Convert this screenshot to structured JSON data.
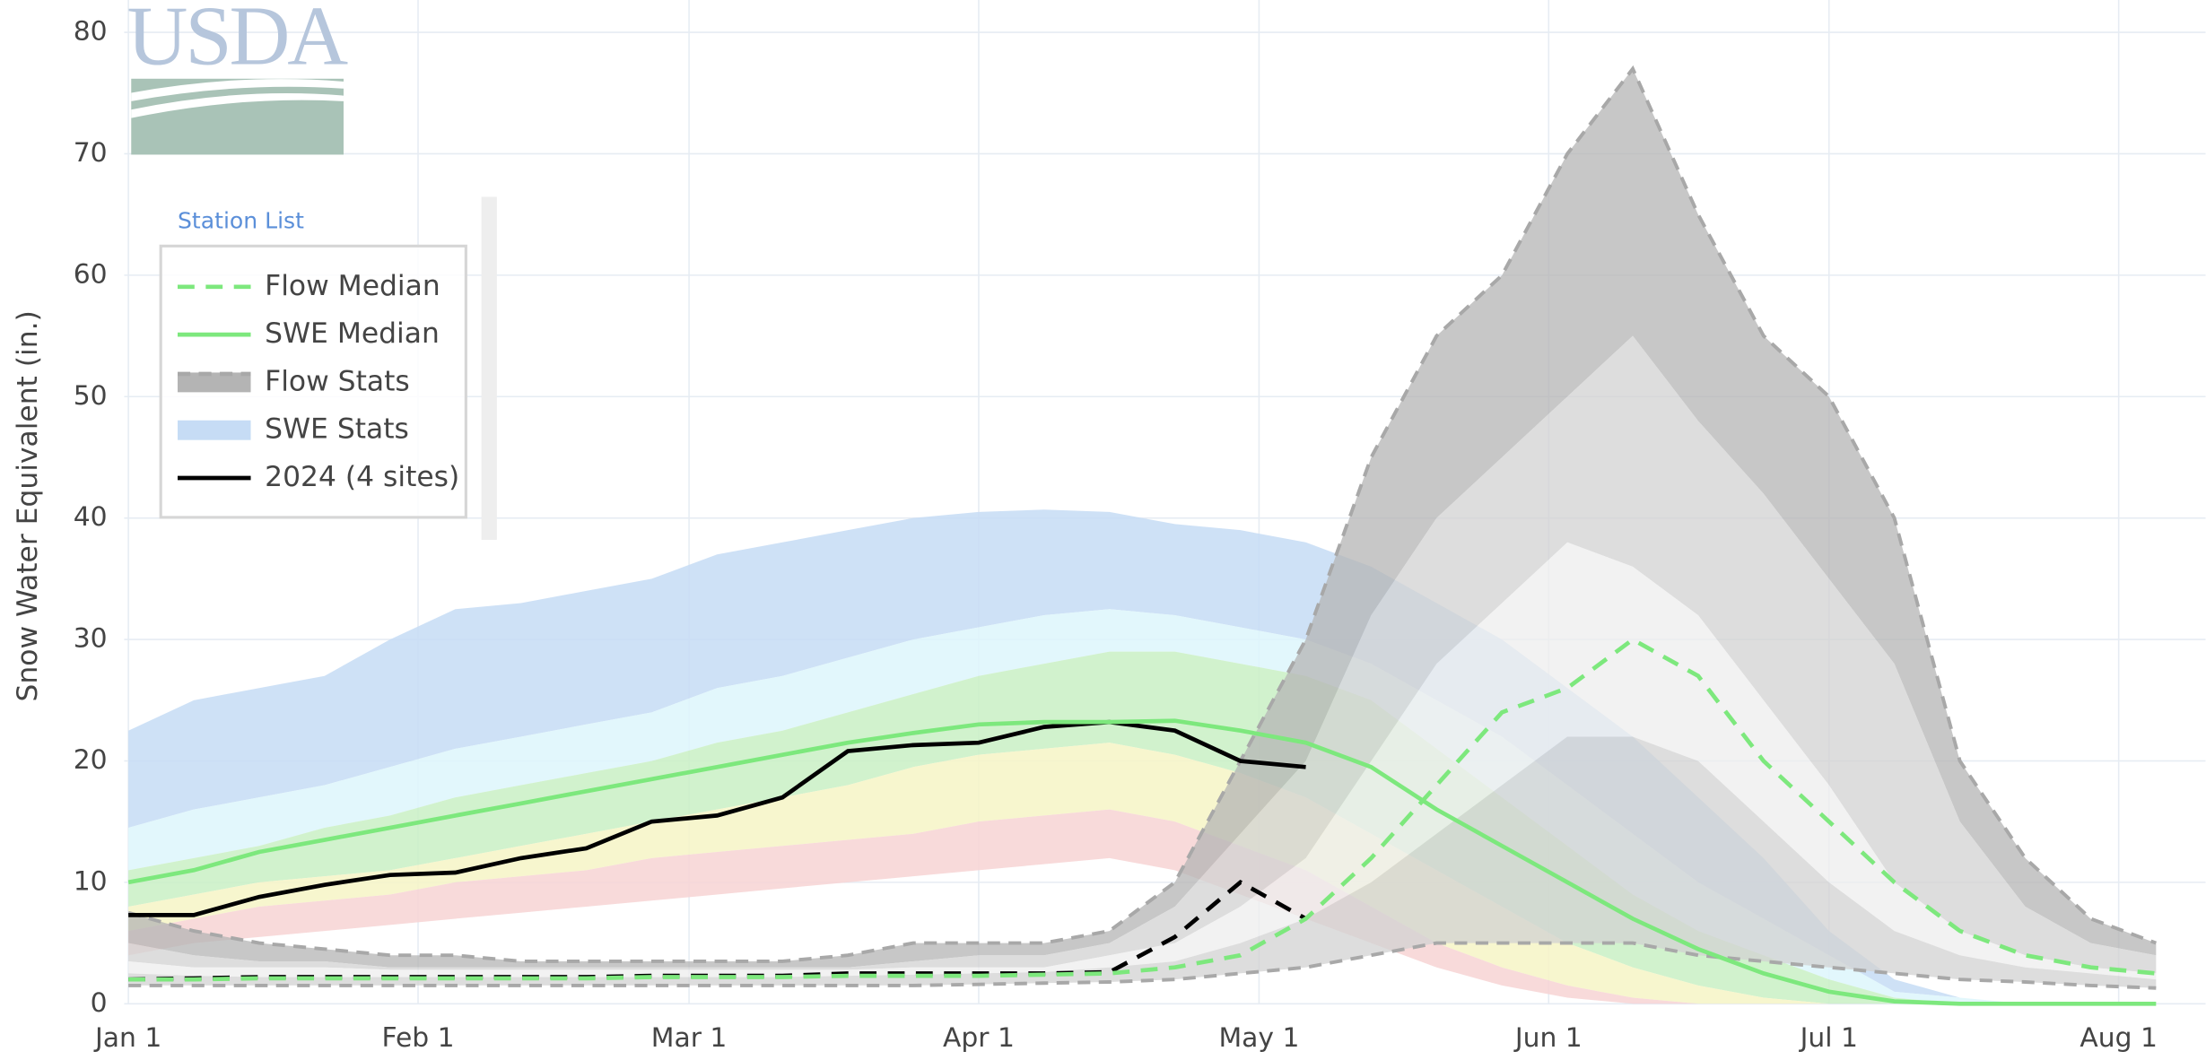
{
  "chart_data": {
    "type": "line",
    "logo": "USDA",
    "y_label": "Snow Water Equivalent (in.)",
    "legend_title": "Station List",
    "legend": "top-left",
    "grid": true,
    "x": [
      0,
      7,
      14,
      21,
      28,
      35,
      42,
      49,
      56,
      63,
      70,
      77,
      84,
      91,
      98,
      105,
      112,
      119,
      126,
      133,
      140,
      147,
      154,
      161,
      168,
      175,
      182,
      189,
      196,
      203,
      210,
      217
    ],
    "xlim": [
      0,
      222
    ],
    "xticks": [
      {
        "value": 0,
        "label": "Jan 1"
      },
      {
        "value": 31,
        "label": "Feb 1"
      },
      {
        "value": 60,
        "label": "Mar 1"
      },
      {
        "value": 91,
        "label": "Apr 1"
      },
      {
        "value": 121,
        "label": "May 1"
      },
      {
        "value": 152,
        "label": "Jun 1"
      },
      {
        "value": 182,
        "label": "Jul 1"
      },
      {
        "value": 213,
        "label": "Aug 1"
      }
    ],
    "ylim": [
      0,
      80
    ],
    "yticks": [
      0,
      10,
      20,
      30,
      40,
      50,
      60,
      70,
      80
    ],
    "series": [
      {
        "name": "Flow Median",
        "color": "#7de87d",
        "dash": true,
        "values": [
          2,
          2,
          2.1,
          2.1,
          2.1,
          2.1,
          2.1,
          2.1,
          2.2,
          2.2,
          2.2,
          2.3,
          2.3,
          2.3,
          2.4,
          2.5,
          3,
          4,
          7,
          12,
          18,
          24,
          26,
          30,
          27,
          20,
          15,
          10,
          6,
          4,
          3,
          2.5
        ]
      },
      {
        "name": "SWE Median",
        "color": "#7de87d",
        "dash": false,
        "values": [
          10,
          11,
          12.5,
          13.5,
          14.5,
          15.5,
          16.5,
          17.5,
          18.5,
          19.5,
          20.5,
          21.5,
          22.3,
          23,
          23.2,
          23.2,
          23.3,
          22.5,
          21.5,
          19.5,
          16,
          13,
          10,
          7,
          4.5,
          2.5,
          1,
          0.2,
          0,
          0,
          0,
          0
        ]
      },
      {
        "name": "Flow Stats",
        "color": "#a8a8a8",
        "dash": true,
        "band_colors": [
          "#b4b4b4",
          "#d2d2d2",
          "#ededed",
          "#d2d2d2"
        ],
        "bounds": [
          [
            7.5,
            6,
            5,
            4.5,
            4,
            4,
            3.5,
            3.5,
            3.5,
            3.5,
            3.5,
            4,
            5,
            5,
            5,
            6,
            10,
            20,
            30,
            45,
            55,
            60,
            70,
            77,
            65,
            55,
            50,
            40,
            20,
            12,
            7,
            5
          ],
          [
            5,
            4,
            3.5,
            3.5,
            3,
            3,
            3,
            3,
            3,
            3,
            3,
            3,
            3.5,
            4,
            4,
            5,
            8,
            14,
            20,
            32,
            40,
            45,
            50,
            55,
            48,
            42,
            35,
            28,
            15,
            8,
            5,
            4
          ],
          [
            3.5,
            3,
            3,
            3,
            2.8,
            2.8,
            2.8,
            2.8,
            2.8,
            2.8,
            2.8,
            2.8,
            3,
            3,
            3,
            4,
            5,
            8,
            12,
            20,
            28,
            33,
            38,
            36,
            32,
            25,
            18,
            10,
            6,
            4,
            3,
            2.5
          ],
          [
            2.5,
            2.3,
            2.2,
            2.2,
            2.2,
            2.2,
            2.2,
            2.2,
            2.2,
            2.2,
            2.2,
            2.3,
            2.4,
            2.5,
            2.6,
            3,
            3.5,
            5,
            7,
            10,
            14,
            18,
            22,
            22,
            20,
            15,
            10,
            6,
            4,
            3,
            2.5,
            2
          ],
          [
            1.5,
            1.5,
            1.5,
            1.5,
            1.5,
            1.5,
            1.5,
            1.5,
            1.5,
            1.5,
            1.5,
            1.5,
            1.5,
            1.6,
            1.7,
            1.8,
            2,
            2.5,
            3,
            4,
            5,
            5,
            5,
            5,
            4,
            3.5,
            3,
            2.5,
            2,
            1.8,
            1.5,
            1.3
          ]
        ]
      },
      {
        "name": "SWE Stats",
        "color": "#c6dcf5",
        "band_colors": [
          "#c6dcf5",
          "#ddf6fb",
          "#c9f0c4",
          "#f6f4c6",
          "#f7d3d3"
        ],
        "bounds": [
          [
            22.5,
            25,
            26,
            27,
            30,
            32.5,
            33,
            34,
            35,
            37,
            38,
            39,
            40,
            40.5,
            40.7,
            40.5,
            39.5,
            39,
            38,
            36,
            33,
            30,
            26,
            22,
            17,
            12,
            6,
            2,
            0.5,
            0,
            0,
            0
          ],
          [
            14.5,
            16,
            17,
            18,
            19.5,
            21,
            22,
            23,
            24,
            26,
            27,
            28.5,
            30,
            31,
            32,
            32.5,
            32,
            31,
            30,
            28,
            25,
            22,
            18,
            14,
            10,
            7,
            4,
            1,
            0.5,
            0,
            0,
            0
          ],
          [
            11,
            12,
            13,
            14.5,
            15.5,
            17,
            18,
            19,
            20,
            21.5,
            22.5,
            24,
            25.5,
            27,
            28,
            29,
            29,
            28,
            27,
            25,
            21,
            17,
            13,
            9,
            6,
            4,
            2,
            0.5,
            0,
            0,
            0,
            0
          ],
          [
            8,
            9,
            10,
            10.5,
            11,
            12,
            13,
            14,
            15,
            16,
            17,
            18,
            19.5,
            20.5,
            21,
            21.5,
            20.5,
            19,
            17,
            14,
            11,
            8,
            5,
            3,
            1.5,
            0.5,
            0,
            0,
            0,
            0,
            0,
            0
          ],
          [
            6,
            7,
            8,
            8.5,
            9,
            10,
            10.5,
            11,
            12,
            12.5,
            13,
            13.5,
            14,
            15,
            15.5,
            16,
            15,
            13,
            11,
            8,
            5,
            3,
            1.5,
            0.5,
            0,
            0,
            0,
            0,
            0,
            0,
            0,
            0
          ],
          [
            4,
            5,
            5.5,
            6,
            6.5,
            7,
            7.5,
            8,
            8.5,
            9,
            9.5,
            10,
            10.5,
            11,
            11.5,
            12,
            11,
            9,
            7,
            5,
            3,
            1.5,
            0.5,
            0,
            0,
            0,
            0,
            0,
            0,
            0,
            0,
            0
          ]
        ]
      },
      {
        "name": "2024 (4 sites)",
        "color": "#000000",
        "dash": false,
        "values": [
          7.3,
          7.3,
          8.8,
          9.8,
          10.6,
          10.8,
          12,
          12.8,
          15,
          15.5,
          17,
          20.8,
          21.3,
          21.5,
          22.8,
          23.2,
          22.5,
          20,
          19.5,
          null,
          null,
          null,
          null,
          null,
          null,
          null,
          null,
          null,
          null,
          null,
          null,
          null
        ],
        "flow_values": [
          2,
          2.1,
          2.2,
          2.2,
          2.2,
          2.2,
          2.2,
          2.2,
          2.3,
          2.3,
          2.3,
          2.5,
          2.5,
          2.5,
          2.5,
          2.6,
          5.5,
          10,
          7,
          null,
          null,
          null,
          null,
          null,
          null,
          null,
          null,
          null,
          null,
          null,
          null,
          null
        ]
      }
    ]
  }
}
